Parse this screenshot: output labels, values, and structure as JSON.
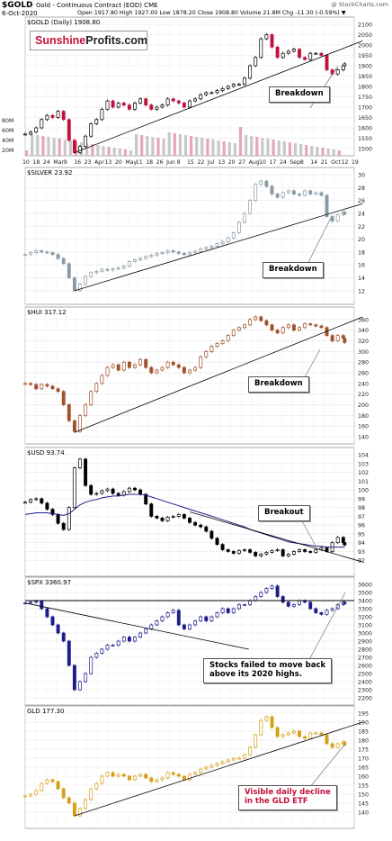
{
  "header": {
    "symbol": "$GOLD",
    "description": "Gold - Continuous Contract (EOD) CME",
    "date": "6-Oct-2020",
    "ohlc": "Open 1917.80   High 1927.00   Low 1878.20   Close 1908.80   Volume 21.8M   Chg -11.30 (-0.59%) ▼",
    "watermark": "@ StockCharts.com"
  },
  "logo": {
    "part1": "Sunshine",
    "part2": "Profits.com"
  },
  "x_axis": {
    "labels": [
      "10",
      "18",
      "24",
      "Mar",
      "9",
      "16",
      "23",
      "Apr",
      "13",
      "20",
      "May",
      "11",
      "18",
      "26",
      "Jun",
      "8",
      "15",
      "22",
      "Jul",
      "13",
      "20",
      "27",
      "Aug",
      "10",
      "17",
      "24",
      "Sep",
      "8",
      "14",
      "21",
      "Oct",
      "12",
      "19"
    ]
  },
  "colors": {
    "up": "#000000",
    "down_gold": "#c2123d",
    "silver": "#8a9aa4",
    "hui": "#a0522d",
    "usd": "#000000",
    "usd_ma": "#1c1c8c",
    "spx": "#1c1c8c",
    "gld": "#d4a017",
    "volume": "#c8c8c8",
    "volume_red": "#e4a8b4"
  },
  "chart_data": [
    {
      "type": "line",
      "name": "gold",
      "title": "$GOLD (Daily) 1908.80",
      "ylim": [
        1500,
        2100
      ],
      "yticks": [
        1500,
        1550,
        1600,
        1650,
        1700,
        1750,
        1800,
        1850,
        1900,
        1950,
        2000,
        2050,
        2100
      ],
      "volume_ticks": [
        "20M",
        "40M",
        "60M",
        "80M"
      ],
      "x": [
        0,
        4,
        8,
        12,
        16,
        20,
        24,
        28,
        32,
        36,
        40,
        44,
        48,
        52,
        56,
        60,
        64,
        68,
        72,
        76,
        80,
        84,
        88,
        92,
        96,
        100,
        104,
        108,
        112,
        116,
        120,
        124,
        128,
        132,
        136,
        140,
        144,
        148,
        152,
        156,
        160,
        164,
        168,
        172,
        176,
        180,
        184,
        188,
        192,
        196,
        200,
        204,
        208,
        212,
        216,
        220,
        224,
        228,
        232,
        233
      ],
      "values": [
        1570,
        1580,
        1600,
        1640,
        1660,
        1650,
        1680,
        1640,
        1540,
        1480,
        1510,
        1560,
        1620,
        1640,
        1690,
        1730,
        1700,
        1720,
        1710,
        1690,
        1720,
        1740,
        1710,
        1690,
        1700,
        1710,
        1740,
        1730,
        1720,
        1700,
        1730,
        1740,
        1760,
        1770,
        1770,
        1780,
        1790,
        1800,
        1810,
        1810,
        1840,
        1900,
        1940,
        2030,
        2050,
        1990,
        1940,
        1960,
        1970,
        1980,
        1940,
        1930,
        1960,
        1960,
        1950,
        1880,
        1860,
        1880,
        1900,
        1909
      ]
    },
    {
      "type": "line",
      "name": "silver",
      "title": "$SILVER 23.92",
      "ylim": [
        11,
        30
      ],
      "yticks": [
        12,
        14,
        16,
        18,
        20,
        22,
        24,
        26,
        28,
        30
      ],
      "x": [
        0,
        4,
        8,
        12,
        16,
        20,
        24,
        28,
        32,
        36,
        40,
        44,
        48,
        52,
        56,
        60,
        64,
        68,
        72,
        76,
        80,
        84,
        88,
        92,
        96,
        100,
        104,
        108,
        112,
        116,
        120,
        124,
        128,
        132,
        136,
        140,
        144,
        148,
        152,
        156,
        160,
        164,
        168,
        172,
        176,
        180,
        184,
        188,
        192,
        196,
        200,
        204,
        208,
        212,
        216,
        220,
        224,
        228,
        232,
        233
      ],
      "values": [
        17.6,
        17.9,
        18.2,
        18.0,
        17.9,
        17.6,
        17.0,
        16.2,
        14.0,
        12.0,
        13.0,
        14.2,
        14.8,
        15.0,
        15.3,
        15.2,
        15.4,
        15.5,
        15.8,
        16.5,
        16.8,
        17.0,
        17.3,
        17.5,
        17.8,
        17.9,
        18.2,
        18.0,
        17.8,
        17.6,
        17.9,
        18.1,
        18.5,
        18.7,
        18.9,
        19.3,
        19.6,
        20.2,
        21.0,
        22.6,
        24.0,
        26.0,
        28.5,
        29.0,
        28.2,
        27.0,
        26.5,
        27.2,
        27.5,
        27.0,
        26.8,
        27.5,
        27.0,
        27.2,
        26.8,
        23.5,
        22.8,
        23.8,
        24.2,
        23.9
      ]
    },
    {
      "type": "line",
      "name": "hui",
      "title": "$HUI 317.12",
      "ylim": [
        140,
        370
      ],
      "yticks": [
        140,
        160,
        180,
        200,
        220,
        240,
        260,
        280,
        300,
        320,
        340,
        360
      ],
      "x": [
        0,
        4,
        8,
        12,
        16,
        20,
        24,
        28,
        32,
        36,
        40,
        44,
        48,
        52,
        56,
        60,
        64,
        68,
        72,
        76,
        80,
        84,
        88,
        92,
        96,
        100,
        104,
        108,
        112,
        116,
        120,
        124,
        128,
        132,
        136,
        140,
        144,
        148,
        152,
        156,
        160,
        164,
        168,
        172,
        176,
        180,
        184,
        188,
        192,
        196,
        200,
        204,
        208,
        212,
        216,
        220,
        224,
        228,
        232,
        233
      ],
      "values": [
        240,
        238,
        230,
        238,
        235,
        230,
        225,
        200,
        170,
        150,
        180,
        200,
        225,
        240,
        255,
        270,
        275,
        265,
        280,
        270,
        275,
        285,
        270,
        260,
        265,
        270,
        280,
        275,
        270,
        260,
        265,
        270,
        290,
        300,
        310,
        315,
        320,
        330,
        340,
        345,
        350,
        360,
        365,
        358,
        350,
        340,
        335,
        345,
        350,
        340,
        345,
        352,
        350,
        348,
        345,
        330,
        320,
        330,
        325,
        317
      ]
    },
    {
      "type": "line",
      "name": "usd",
      "title": "$USD 93.74",
      "ylim": [
        91,
        104
      ],
      "yticks": [
        92,
        93,
        94,
        95,
        96,
        97,
        98,
        99,
        100,
        101,
        102,
        103,
        104
      ],
      "x": [
        0,
        4,
        8,
        12,
        16,
        20,
        24,
        28,
        32,
        36,
        40,
        44,
        48,
        52,
        56,
        60,
        64,
        68,
        72,
        76,
        80,
        84,
        88,
        92,
        96,
        100,
        104,
        108,
        112,
        116,
        120,
        124,
        128,
        132,
        136,
        140,
        144,
        148,
        152,
        156,
        160,
        164,
        168,
        172,
        176,
        180,
        184,
        188,
        192,
        196,
        200,
        204,
        208,
        212,
        216,
        220,
        224,
        228,
        232,
        233
      ],
      "values": [
        98.6,
        98.9,
        99.0,
        98.5,
        97.8,
        97.2,
        96.2,
        95.5,
        98.0,
        102.5,
        103.5,
        100.5,
        99.5,
        99.6,
        99.9,
        100.1,
        99.6,
        99.4,
        99.8,
        100.2,
        100.0,
        99.5,
        98.4,
        97.0,
        96.8,
        96.5,
        96.9,
        97.0,
        97.2,
        96.8,
        96.3,
        96.0,
        95.8,
        95.3,
        94.5,
        93.8,
        93.2,
        93.0,
        92.8,
        93.1,
        93.2,
        92.9,
        92.5,
        92.7,
        92.9,
        93.1,
        93.2,
        92.5,
        92.7,
        93.0,
        93.2,
        93.0,
        92.9,
        93.2,
        93.4,
        93.0,
        94.0,
        94.6,
        94.0,
        93.74
      ],
      "moving_average": [
        97.2,
        97.3,
        97.4,
        97.4,
        97.4,
        97.3,
        97.2,
        97.1,
        97.3,
        97.8,
        98.3,
        98.6,
        98.8,
        98.9,
        99.1,
        99.2,
        99.3,
        99.3,
        99.4,
        99.5,
        99.5,
        99.5,
        99.4,
        99.2,
        99.0,
        98.8,
        98.6,
        98.4,
        98.2,
        98.0,
        97.8,
        97.6,
        97.4,
        97.2,
        97.0,
        96.8,
        96.6,
        96.4,
        96.2,
        96.0,
        95.8,
        95.5,
        95.3,
        95.1,
        94.9,
        94.7,
        94.5,
        94.3,
        94.1,
        94.0,
        93.9,
        93.8,
        93.7,
        93.6,
        93.6,
        93.5,
        93.5,
        93.5,
        93.5,
        93.5
      ]
    },
    {
      "type": "line",
      "name": "spx",
      "title": "$SPX 3360.97",
      "ylim": [
        2200,
        3600
      ],
      "yticks": [
        2200,
        2300,
        2400,
        2500,
        2600,
        2700,
        2800,
        2900,
        3000,
        3100,
        3200,
        3300,
        3400,
        3500,
        3600
      ],
      "x": [
        0,
        4,
        8,
        12,
        16,
        20,
        24,
        28,
        32,
        36,
        40,
        44,
        48,
        52,
        56,
        60,
        64,
        68,
        72,
        76,
        80,
        84,
        88,
        92,
        96,
        100,
        104,
        108,
        112,
        116,
        120,
        124,
        128,
        132,
        136,
        140,
        144,
        148,
        152,
        156,
        160,
        164,
        168,
        172,
        176,
        180,
        184,
        188,
        192,
        196,
        200,
        204,
        208,
        212,
        216,
        220,
        224,
        228,
        232,
        233
      ],
      "values": [
        3370,
        3380,
        3390,
        3300,
        3200,
        3100,
        3000,
        2900,
        2600,
        2300,
        2400,
        2500,
        2700,
        2750,
        2800,
        2850,
        2850,
        2900,
        2950,
        2900,
        2950,
        3000,
        3050,
        3100,
        3150,
        3200,
        3250,
        3280,
        3100,
        3050,
        3100,
        3150,
        3200,
        3150,
        3200,
        3250,
        3300,
        3250,
        3300,
        3350,
        3350,
        3400,
        3450,
        3500,
        3550,
        3580,
        3450,
        3380,
        3330,
        3350,
        3400,
        3380,
        3300,
        3250,
        3230,
        3280,
        3300,
        3350,
        3380,
        3361
      ]
    },
    {
      "type": "line",
      "name": "gld",
      "title": "GLD 177.30",
      "ylim": [
        135,
        195
      ],
      "yticks": [
        140,
        145,
        150,
        155,
        160,
        165,
        170,
        175,
        180,
        185,
        190,
        195
      ],
      "x": [
        0,
        4,
        8,
        12,
        16,
        20,
        24,
        28,
        32,
        36,
        40,
        44,
        48,
        52,
        56,
        60,
        64,
        68,
        72,
        76,
        80,
        84,
        88,
        92,
        96,
        100,
        104,
        108,
        112,
        116,
        120,
        124,
        128,
        132,
        136,
        140,
        144,
        148,
        152,
        156,
        160,
        164,
        168,
        172,
        176,
        180,
        184,
        188,
        192,
        196,
        200,
        204,
        208,
        212,
        216,
        220,
        224,
        228,
        232,
        233
      ],
      "values": [
        149,
        150,
        152,
        156,
        158,
        157,
        153,
        148,
        145,
        138,
        142,
        147,
        153,
        156,
        160,
        162,
        160,
        161,
        160,
        158,
        160,
        161,
        159,
        157,
        158,
        159,
        162,
        161,
        160,
        158,
        161,
        162,
        164,
        165,
        166,
        167,
        168,
        169,
        170,
        170,
        172,
        176,
        183,
        191,
        193,
        187,
        182,
        183,
        184,
        185,
        182,
        181,
        184,
        184,
        183,
        178,
        176,
        178,
        179,
        177.3
      ]
    }
  ],
  "callouts": {
    "gold": "Breakdown",
    "silver": "Breakdown",
    "hui": "Breakdown",
    "usd": "Breakout",
    "spx_1": "Stocks failed to move back",
    "spx_2": "above its 2020 highs.",
    "gld_1": "Visible daily decline",
    "gld_2": "in the GLD ETF"
  }
}
